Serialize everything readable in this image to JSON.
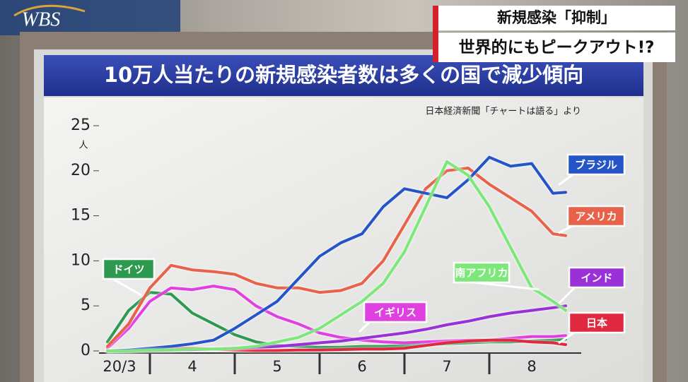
{
  "logo": "WBS",
  "captions": [
    "新規感染「抑制」",
    "世界的にもピークアウト!?"
  ],
  "chart_data": {
    "type": "line",
    "title": "10万人当たりの新規感染者数は多くの国で減少傾向",
    "source": "日本経済新聞「チャートは語る」より",
    "y_unit": "人",
    "x": [
      3.5,
      3.75,
      4,
      4.25,
      4.5,
      4.75,
      5,
      5.25,
      5.5,
      5.75,
      6,
      6.25,
      6.5,
      6.75,
      7,
      7.25,
      7.5,
      7.75,
      8,
      8.25,
      8.5,
      8.75,
      8.9
    ],
    "xlim": [
      3.4,
      9.05
    ],
    "xticks": [
      {
        "value": 3.5,
        "label": "20/3"
      },
      {
        "value": 4.5,
        "label": "4"
      },
      {
        "value": 5.5,
        "label": "5"
      },
      {
        "value": 6.5,
        "label": "6"
      },
      {
        "value": 7.5,
        "label": "7"
      },
      {
        "value": 8.5,
        "label": "8"
      }
    ],
    "ylim": [
      0,
      25
    ],
    "yticks": [
      0,
      5,
      10,
      15,
      20,
      25
    ],
    "series": [
      {
        "name": "ブラジル",
        "color": "#2454c8",
        "values": [
          0,
          0.1,
          0.3,
          0.5,
          0.8,
          1.2,
          2.5,
          4,
          5.5,
          8,
          10.5,
          12,
          13,
          16,
          18,
          17.5,
          17,
          19,
          21.5,
          20.5,
          20.8,
          17.5,
          17.6
        ]
      },
      {
        "name": "アメリカ",
        "color": "#e8624a",
        "values": [
          0.5,
          3,
          7,
          9.5,
          9,
          8.8,
          8.5,
          7.5,
          7,
          7,
          6.5,
          6.7,
          7.5,
          10,
          14,
          18,
          20,
          20.3,
          18.5,
          17,
          15.5,
          13,
          12.8
        ]
      },
      {
        "name": "南アフリカ",
        "color": "#7de87a",
        "values": [
          0,
          0,
          0.1,
          0.1,
          0.2,
          0.2,
          0.3,
          0.5,
          1,
          1.5,
          2.5,
          4,
          5.5,
          7.5,
          11,
          16,
          21,
          19.5,
          16,
          11.5,
          7,
          5.5,
          4.5
        ]
      },
      {
        "name": "インド",
        "color": "#9a30d8",
        "values": [
          0,
          0,
          0.05,
          0.1,
          0.15,
          0.2,
          0.3,
          0.4,
          0.5,
          0.7,
          0.9,
          1.1,
          1.4,
          1.7,
          2,
          2.4,
          2.9,
          3.3,
          3.8,
          4.2,
          4.5,
          4.8,
          5
        ]
      },
      {
        "name": "日本",
        "color": "#e02840",
        "values": [
          0,
          0.05,
          0.2,
          0.3,
          0.3,
          0.2,
          0.1,
          0.05,
          0.05,
          0.1,
          0.1,
          0.15,
          0.2,
          0.2,
          0.3,
          0.6,
          0.9,
          1.1,
          1.2,
          1.2,
          1,
          0.9,
          0.7
        ]
      },
      {
        "name": "ドイツ",
        "color": "#2e9a50",
        "values": [
          1,
          4.5,
          6.5,
          6.3,
          4.2,
          3,
          1.8,
          1,
          0.6,
          0.5,
          0.4,
          0.4,
          0.5,
          0.5,
          0.6,
          0.7,
          0.8,
          0.9,
          1,
          1,
          1.1,
          1.2,
          1.3
        ]
      },
      {
        "name": "イギリス",
        "color": "#e040e0",
        "values": [
          0.3,
          2.5,
          5.5,
          7,
          6.8,
          7.2,
          6.8,
          5,
          3.8,
          3,
          2,
          1.5,
          1.2,
          1,
          0.9,
          1,
          1.1,
          1.2,
          1.2,
          1.4,
          1.6,
          1.6,
          1.7
        ]
      }
    ]
  }
}
